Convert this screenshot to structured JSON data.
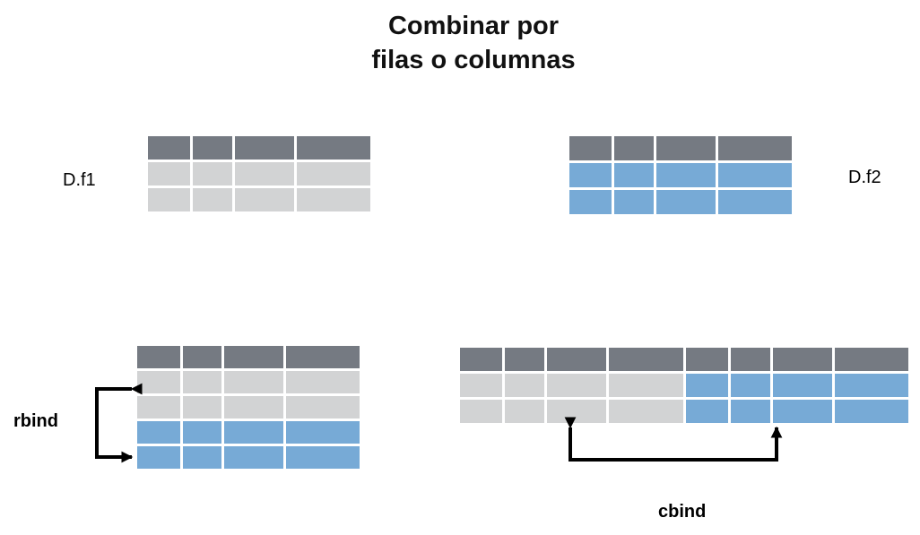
{
  "title_line1": "Combinar por",
  "title_line2": "filas o columnas",
  "df1_label": "D.f1",
  "df2_label": "D.f2",
  "rbind_label": "rbind",
  "cbind_label": "cbind",
  "colors": {
    "header": "#757a82",
    "df1_rows": "#d2d3d4",
    "df2_rows": "#77aad6",
    "arrow": "#000000"
  },
  "tables": {
    "df1": {
      "header_rows": 1,
      "rows": [
        "gray",
        "gray"
      ],
      "columns": 4
    },
    "df2": {
      "header_rows": 1,
      "rows": [
        "blue",
        "blue"
      ],
      "columns": 4
    },
    "rbind_result": {
      "header_rows": 1,
      "rows": [
        "gray",
        "gray",
        "blue",
        "blue"
      ],
      "columns": 4
    },
    "cbind_result": {
      "header_rows": 1,
      "rows": [
        "gray+blue",
        "gray+blue"
      ],
      "columns": 8
    }
  }
}
